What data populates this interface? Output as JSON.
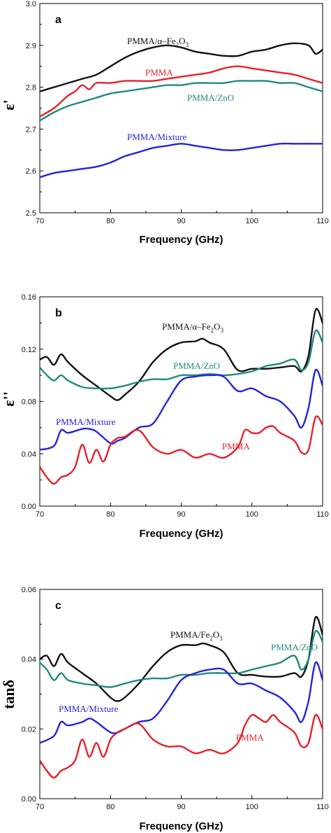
{
  "colors": {
    "PMMA": "#e8202a",
    "PMMA/α–Fe2O3": "#111111",
    "PMMA/ZnO": "#1f8a80",
    "PMMA/Mixture": "#2424d8"
  },
  "chart_data": [
    {
      "type": "line",
      "panel": "a",
      "xlabel": "Frequency (GHz)",
      "ylabel": "ε'",
      "xlim": [
        70,
        110
      ],
      "ylim": [
        2.5,
        3.0
      ],
      "xticks": [
        "70",
        "80",
        "90",
        "100",
        "110"
      ],
      "yticks": [
        "2.5",
        "2.6",
        "2.7",
        "2.8",
        "2.9",
        "3.0"
      ],
      "series": [
        {
          "key": "fe",
          "name": "PMMA/α–Fe2O3",
          "label_main": "PMMA/α–Fe",
          "label_sub": "2",
          "label_tail": "O",
          "label_sub2": "3",
          "x": [
            70,
            72,
            74,
            76,
            78,
            80,
            82,
            84,
            86,
            88,
            90,
            92,
            94,
            96,
            98,
            100,
            102,
            104,
            106,
            108,
            109,
            110
          ],
          "y": [
            2.79,
            2.8,
            2.81,
            2.82,
            2.83,
            2.85,
            2.87,
            2.885,
            2.895,
            2.9,
            2.895,
            2.885,
            2.88,
            2.875,
            2.875,
            2.885,
            2.89,
            2.9,
            2.905,
            2.9,
            2.88,
            2.89
          ]
        },
        {
          "key": "pmma",
          "name": "PMMA",
          "label_main": "PMMA",
          "x": [
            70,
            72,
            74,
            75,
            76,
            77,
            78,
            80,
            82,
            84,
            86,
            88,
            90,
            92,
            94,
            96,
            98,
            100,
            102,
            104,
            106,
            108,
            110
          ],
          "y": [
            2.73,
            2.75,
            2.78,
            2.79,
            2.805,
            2.795,
            2.81,
            2.81,
            2.815,
            2.815,
            2.815,
            2.82,
            2.825,
            2.83,
            2.835,
            2.845,
            2.85,
            2.845,
            2.84,
            2.835,
            2.83,
            2.82,
            2.81
          ]
        },
        {
          "key": "zno",
          "name": "PMMA/ZnO",
          "label_main": "PMMA/ZnO",
          "x": [
            70,
            72,
            74,
            76,
            78,
            80,
            82,
            84,
            86,
            88,
            90,
            92,
            94,
            96,
            98,
            100,
            102,
            104,
            106,
            108,
            110
          ],
          "y": [
            2.72,
            2.74,
            2.755,
            2.765,
            2.775,
            2.785,
            2.79,
            2.795,
            2.8,
            2.805,
            2.805,
            2.81,
            2.81,
            2.81,
            2.815,
            2.815,
            2.815,
            2.81,
            2.81,
            2.8,
            2.79
          ]
        },
        {
          "key": "mix",
          "name": "PMMA/Mixture",
          "label_main": "PMMA/Mixture",
          "x": [
            70,
            72,
            74,
            76,
            78,
            80,
            82,
            84,
            86,
            88,
            90,
            92,
            94,
            96,
            98,
            100,
            102,
            104,
            106,
            108,
            110
          ],
          "y": [
            2.585,
            2.595,
            2.6,
            2.605,
            2.61,
            2.62,
            2.635,
            2.645,
            2.655,
            2.66,
            2.665,
            2.66,
            2.655,
            2.65,
            2.65,
            2.655,
            2.66,
            2.665,
            2.665,
            2.665,
            2.665
          ]
        }
      ]
    },
    {
      "type": "line",
      "panel": "b",
      "xlabel": "Frequency (GHz)",
      "ylabel": "ε''",
      "xlim": [
        70,
        110
      ],
      "ylim": [
        0.0,
        0.16
      ],
      "xticks": [
        "70",
        "80",
        "90",
        "100",
        "110"
      ],
      "yticks": [
        "0.00",
        "0.04",
        "0.08",
        "0.12",
        "0.16"
      ],
      "series": [
        {
          "key": "fe",
          "name": "PMMA/α–Fe2O3",
          "label_main": "PMMA/α–Fe",
          "label_sub": "2",
          "label_tail": "O",
          "label_sub2": "3",
          "x": [
            70,
            71,
            72,
            73,
            74,
            76,
            78,
            80,
            81,
            82,
            84,
            86,
            88,
            90,
            92,
            93,
            94,
            96,
            98,
            100,
            102,
            104,
            106,
            107,
            108,
            109,
            110
          ],
          "y": [
            0.112,
            0.114,
            0.108,
            0.116,
            0.11,
            0.1,
            0.092,
            0.084,
            0.081,
            0.085,
            0.095,
            0.11,
            0.12,
            0.125,
            0.126,
            0.128,
            0.125,
            0.12,
            0.104,
            0.105,
            0.105,
            0.106,
            0.107,
            0.103,
            0.115,
            0.15,
            0.14
          ]
        },
        {
          "key": "zno",
          "name": "PMMA/ZnO",
          "label_main": "PMMA/ZnO",
          "x": [
            70,
            71,
            72,
            73,
            74,
            76,
            78,
            80,
            82,
            84,
            86,
            88,
            90,
            92,
            94,
            96,
            98,
            100,
            102,
            104,
            106,
            107,
            108,
            109,
            110
          ],
          "y": [
            0.106,
            0.1,
            0.096,
            0.1,
            0.096,
            0.091,
            0.09,
            0.09,
            0.092,
            0.095,
            0.097,
            0.097,
            0.1,
            0.1,
            0.101,
            0.1,
            0.101,
            0.103,
            0.107,
            0.109,
            0.112,
            0.104,
            0.11,
            0.134,
            0.125
          ]
        },
        {
          "key": "mix",
          "name": "PMMA/Mixture",
          "label_main": "PMMA/Mixture",
          "x": [
            70,
            72,
            73,
            74,
            76,
            77,
            78,
            80,
            81,
            82,
            84,
            86,
            88,
            90,
            92,
            94,
            96,
            98,
            100,
            102,
            104,
            106,
            107,
            108,
            109,
            110
          ],
          "y": [
            0.043,
            0.046,
            0.058,
            0.056,
            0.059,
            0.059,
            0.057,
            0.048,
            0.05,
            0.052,
            0.06,
            0.063,
            0.08,
            0.096,
            0.099,
            0.1,
            0.099,
            0.088,
            0.09,
            0.084,
            0.08,
            0.069,
            0.06,
            0.075,
            0.104,
            0.092
          ]
        },
        {
          "key": "pmma",
          "name": "PMMA",
          "label_main": "PMMA",
          "x": [
            70,
            71,
            72,
            73,
            74,
            75,
            76,
            77,
            78,
            79,
            80,
            81,
            82,
            84,
            86,
            88,
            90,
            92,
            94,
            96,
            98,
            99,
            100,
            101,
            102,
            103,
            104,
            106,
            107,
            108,
            109,
            110
          ],
          "y": [
            0.03,
            0.022,
            0.017,
            0.022,
            0.024,
            0.03,
            0.047,
            0.033,
            0.043,
            0.034,
            0.047,
            0.052,
            0.053,
            0.058,
            0.045,
            0.04,
            0.043,
            0.037,
            0.04,
            0.037,
            0.045,
            0.058,
            0.056,
            0.056,
            0.06,
            0.061,
            0.056,
            0.05,
            0.041,
            0.043,
            0.068,
            0.062
          ]
        }
      ]
    },
    {
      "type": "line",
      "panel": "c",
      "xlabel": "Frequency (GHz)",
      "ylabel": "tanδ",
      "xlim": [
        70,
        110
      ],
      "ylim": [
        0.0,
        0.06
      ],
      "xticks": [
        "70",
        "80",
        "90",
        "100",
        "110"
      ],
      "yticks": [
        "0.00",
        "0.02",
        "0.04",
        "0.06"
      ],
      "series": [
        {
          "key": "fe",
          "name": "PMMA/Fe2O3",
          "label_main": "PMMA/Fe",
          "label_sub": "2",
          "label_tail": "O",
          "label_sub2": "3",
          "x": [
            70,
            71,
            72,
            73,
            74,
            76,
            78,
            80,
            81,
            82,
            84,
            86,
            88,
            90,
            92,
            93,
            94,
            96,
            98,
            100,
            102,
            104,
            106,
            107,
            108,
            109,
            110
          ],
          "y": [
            0.04,
            0.041,
            0.038,
            0.0415,
            0.039,
            0.036,
            0.033,
            0.029,
            0.028,
            0.029,
            0.033,
            0.038,
            0.042,
            0.044,
            0.044,
            0.0445,
            0.044,
            0.042,
            0.036,
            0.0355,
            0.035,
            0.035,
            0.036,
            0.035,
            0.04,
            0.052,
            0.047
          ]
        },
        {
          "key": "zno",
          "name": "PMMA/ZnO",
          "label_main": "PMMA/ZnO",
          "x": [
            70,
            71,
            72,
            73,
            74,
            76,
            78,
            80,
            82,
            84,
            86,
            88,
            90,
            92,
            94,
            96,
            98,
            100,
            102,
            104,
            106,
            107,
            108,
            109,
            110
          ],
          "y": [
            0.039,
            0.037,
            0.034,
            0.036,
            0.034,
            0.033,
            0.0325,
            0.032,
            0.033,
            0.034,
            0.0345,
            0.0345,
            0.0355,
            0.0355,
            0.036,
            0.036,
            0.036,
            0.037,
            0.038,
            0.039,
            0.041,
            0.037,
            0.04,
            0.048,
            0.045
          ]
        },
        {
          "key": "mix",
          "name": "PMMA/Mixture",
          "label_main": "PMMA/Mixture",
          "x": [
            70,
            72,
            73,
            74,
            76,
            77,
            78,
            80,
            81,
            82,
            84,
            86,
            88,
            90,
            92,
            94,
            96,
            98,
            100,
            102,
            104,
            106,
            107,
            108,
            109,
            110
          ],
          "y": [
            0.016,
            0.018,
            0.022,
            0.021,
            0.022,
            0.023,
            0.022,
            0.019,
            0.019,
            0.02,
            0.022,
            0.023,
            0.028,
            0.034,
            0.036,
            0.037,
            0.037,
            0.033,
            0.033,
            0.031,
            0.029,
            0.025,
            0.022,
            0.028,
            0.039,
            0.034
          ]
        },
        {
          "key": "pmma",
          "name": "PMMA",
          "label_main": "PMMA",
          "x": [
            70,
            71,
            72,
            73,
            74,
            75,
            76,
            77,
            78,
            79,
            80,
            81,
            82,
            84,
            86,
            88,
            90,
            92,
            94,
            96,
            98,
            99,
            100,
            101,
            102,
            103,
            104,
            106,
            107,
            108,
            109,
            110
          ],
          "y": [
            0.011,
            0.008,
            0.006,
            0.008,
            0.009,
            0.011,
            0.017,
            0.012,
            0.016,
            0.012,
            0.017,
            0.019,
            0.02,
            0.0215,
            0.017,
            0.015,
            0.015,
            0.013,
            0.014,
            0.013,
            0.016,
            0.021,
            0.024,
            0.023,
            0.022,
            0.024,
            0.022,
            0.019,
            0.015,
            0.016,
            0.024,
            0.02
          ]
        }
      ]
    }
  ]
}
